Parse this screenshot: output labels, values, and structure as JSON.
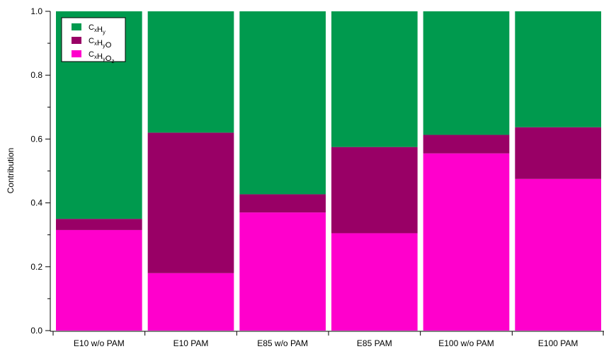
{
  "chart_data": {
    "type": "bar",
    "stacked": true,
    "title": "",
    "xlabel": "",
    "ylabel": "Contribution",
    "ylim": [
      0,
      1.0
    ],
    "yticks": [
      "0.0",
      "0.2",
      "0.4",
      "0.6",
      "0.8",
      "1.0"
    ],
    "grid": false,
    "legend_position": "top-left",
    "categories": [
      "E10 w/o PAM",
      "E10 PAM",
      "E85 w/o PAM",
      "E85 PAM",
      "E100 w/o PAM",
      "E100 PAM"
    ],
    "series": [
      {
        "name": "CxHyOz",
        "legend_parts": [
          [
            "C",
            "x"
          ],
          [
            "H",
            "y"
          ],
          [
            "O",
            "z"
          ]
        ],
        "color": "#ff00cc",
        "values": [
          0.315,
          0.18,
          0.37,
          0.305,
          0.555,
          0.475
        ]
      },
      {
        "name": "CxHyO",
        "legend_parts": [
          [
            "C",
            "x"
          ],
          [
            "H",
            "y"
          ],
          [
            "O",
            ""
          ]
        ],
        "color": "#990066",
        "values": [
          0.035,
          0.44,
          0.057,
          0.27,
          0.058,
          0.162
        ]
      },
      {
        "name": "CxHy",
        "legend_parts": [
          [
            "C",
            "x"
          ],
          [
            "H",
            "y"
          ]
        ],
        "color": "#009a4e",
        "values": [
          0.65,
          0.38,
          0.573,
          0.425,
          0.387,
          0.363
        ]
      }
    ],
    "legend_order": [
      "CxHy",
      "CxHyO",
      "CxHyOz"
    ]
  }
}
